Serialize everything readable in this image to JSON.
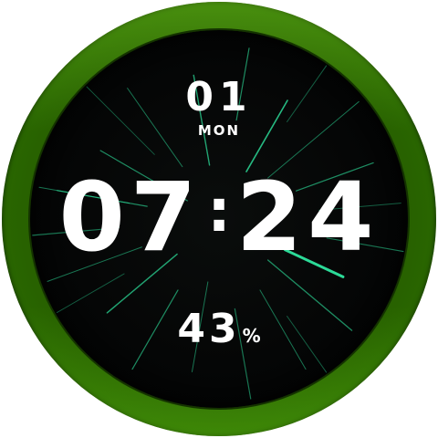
{
  "watch_face": {
    "date": {
      "day_number": "01",
      "weekday": "MON"
    },
    "time": {
      "hours": "07",
      "separator": ":",
      "minutes": "24"
    },
    "battery": {
      "value": "43",
      "unit": "%"
    },
    "colors": {
      "bezel": "#3c9a05",
      "face": "#000000",
      "rays": "#2ee6a0",
      "text": "#ffffff"
    }
  }
}
